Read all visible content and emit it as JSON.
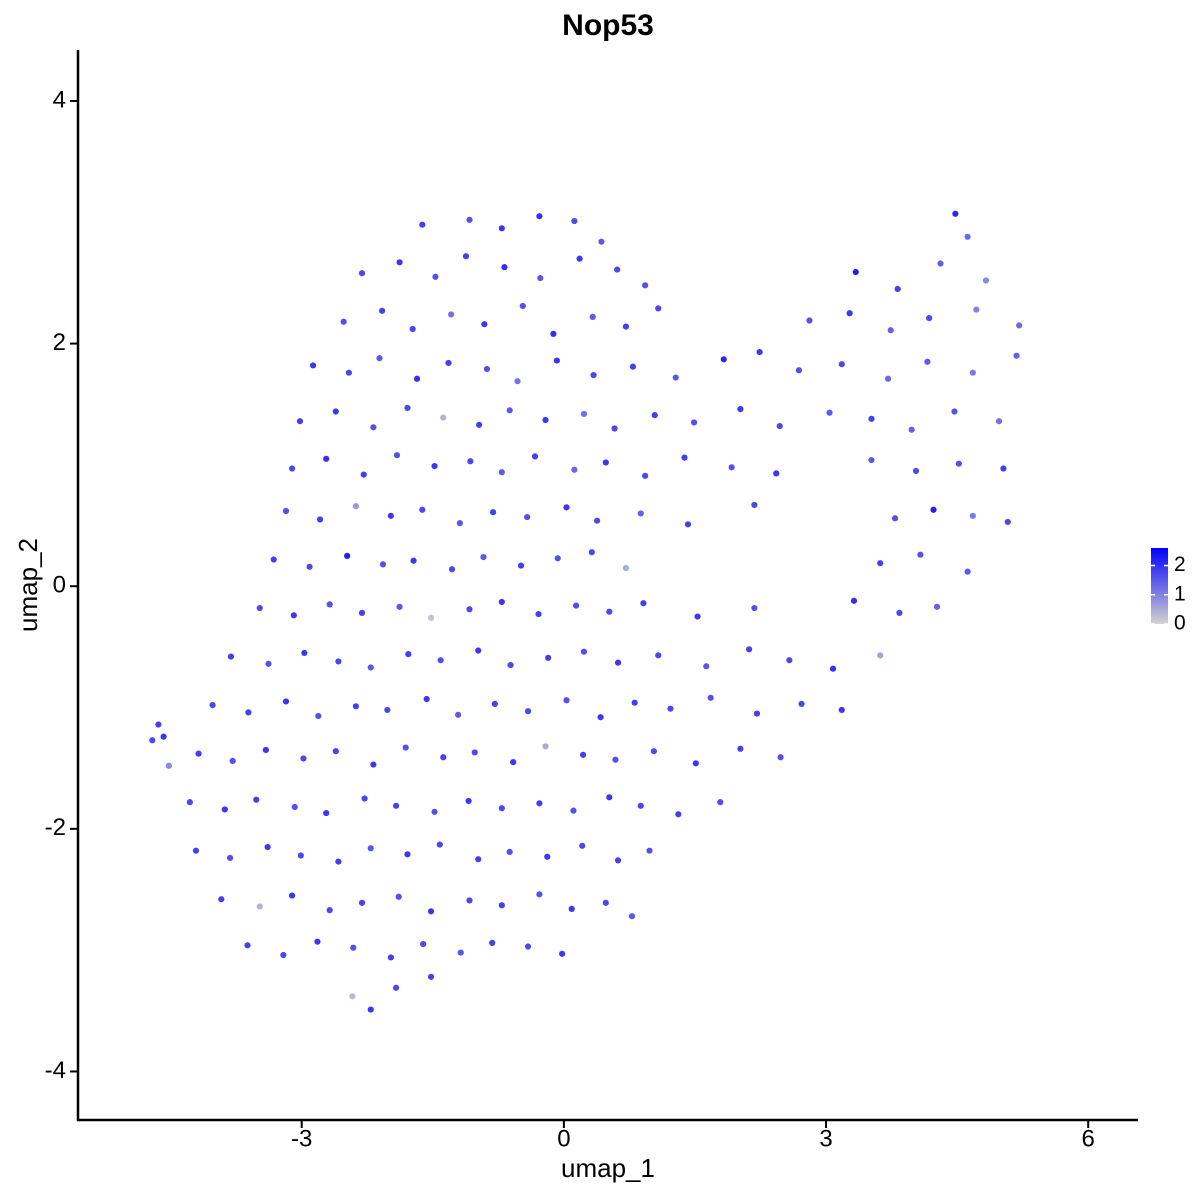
{
  "chart_data": {
    "type": "scatter",
    "title": "Nop53",
    "xlabel": "umap_1",
    "ylabel": "umap_2",
    "xlim": [
      -5.56,
      6.57
    ],
    "ylim": [
      -4.4,
      4.42
    ],
    "xticks": [
      -3,
      0,
      3,
      6
    ],
    "yticks": [
      -4,
      -2,
      0,
      2,
      4
    ],
    "grid": false,
    "color_scale": {
      "low": "#d3d3d3",
      "high": "#0000ff",
      "lim": [
        0,
        2.6
      ],
      "ticks": [
        0,
        1,
        2
      ],
      "position": "right"
    },
    "x": [
      -1.62,
      -1.08,
      -0.71,
      -0.28,
      0.12,
      0.43,
      4.48,
      4.62,
      -2.31,
      -1.88,
      -1.47,
      -1.12,
      -0.68,
      -0.27,
      0.18,
      0.61,
      0.93,
      3.34,
      3.82,
      4.31,
      4.83,
      -2.52,
      -2.08,
      -1.73,
      -1.29,
      -0.91,
      -0.47,
      -0.12,
      0.33,
      0.71,
      1.08,
      2.81,
      3.27,
      3.74,
      4.18,
      4.72,
      5.21,
      -2.87,
      -2.46,
      -2.11,
      -1.68,
      -1.32,
      -0.88,
      -0.53,
      -0.08,
      0.34,
      0.79,
      1.28,
      1.83,
      2.24,
      2.69,
      3.18,
      3.71,
      4.16,
      4.68,
      5.18,
      -3.02,
      -2.61,
      -2.18,
      -1.79,
      -1.38,
      -0.97,
      -0.62,
      -0.21,
      0.23,
      0.58,
      1.04,
      1.49,
      2.02,
      2.47,
      3.04,
      3.52,
      3.98,
      4.47,
      4.98,
      -3.11,
      -2.72,
      -2.29,
      -1.91,
      -1.48,
      -1.07,
      -0.71,
      -0.33,
      0.12,
      0.48,
      0.93,
      1.38,
      1.92,
      2.43,
      3.52,
      4.03,
      4.52,
      5.03,
      -3.18,
      -2.79,
      -2.38,
      -1.98,
      -1.62,
      -1.19,
      -0.81,
      -0.42,
      0.03,
      0.38,
      0.88,
      1.42,
      2.18,
      3.79,
      4.23,
      4.68,
      5.08,
      -3.32,
      -2.91,
      -2.48,
      -2.07,
      -1.72,
      -1.28,
      -0.92,
      -0.49,
      -0.07,
      0.32,
      0.71,
      3.62,
      4.08,
      4.62,
      -3.48,
      -3.09,
      -2.68,
      -2.31,
      -1.88,
      -1.52,
      -1.08,
      -0.71,
      -0.29,
      0.14,
      0.52,
      0.91,
      1.53,
      2.18,
      3.32,
      3.84,
      4.27,
      -3.81,
      -3.38,
      -2.97,
      -2.58,
      -2.21,
      -1.78,
      -1.41,
      -0.98,
      -0.61,
      -0.18,
      0.23,
      0.62,
      1.08,
      1.63,
      2.12,
      2.58,
      3.08,
      3.62,
      -4.02,
      -3.61,
      -3.18,
      -2.81,
      -2.38,
      -2.02,
      -1.57,
      -1.21,
      -0.79,
      -0.41,
      0.03,
      0.42,
      0.81,
      1.22,
      1.68,
      2.21,
      2.72,
      3.18,
      -4.18,
      -3.79,
      -3.41,
      -2.98,
      -2.61,
      -2.18,
      -1.81,
      -1.38,
      -1.02,
      -0.58,
      -0.21,
      0.22,
      0.59,
      1.03,
      1.51,
      2.02,
      2.48,
      -4.28,
      -3.88,
      -3.52,
      -3.08,
      -2.72,
      -2.28,
      -1.92,
      -1.48,
      -1.09,
      -0.71,
      -0.28,
      0.11,
      0.52,
      0.88,
      1.31,
      1.79,
      -4.21,
      -3.82,
      -3.39,
      -3.01,
      -2.58,
      -2.21,
      -1.79,
      -1.42,
      -0.98,
      -0.62,
      -0.19,
      0.21,
      0.62,
      0.98,
      -3.92,
      -3.48,
      -3.11,
      -2.68,
      -2.31,
      -1.89,
      -1.52,
      -1.08,
      -0.71,
      -0.28,
      0.09,
      0.48,
      0.78,
      -3.62,
      -3.21,
      -2.82,
      -2.41,
      -1.98,
      -1.61,
      -1.18,
      -0.82,
      -0.41,
      -0.02,
      -2.42,
      -2.21,
      -1.92,
      -1.52,
      -4.71,
      -4.64,
      -4.58,
      -4.52
    ],
    "values": [
      2.98,
      3.02,
      2.95,
      3.05,
      3.01,
      2.84,
      3.07,
      2.88,
      2.58,
      2.67,
      2.55,
      2.72,
      2.63,
      2.54,
      2.7,
      2.61,
      2.48,
      2.59,
      2.45,
      2.66,
      2.52,
      2.18,
      2.27,
      2.12,
      2.24,
      2.16,
      2.31,
      2.08,
      2.22,
      2.14,
      2.29,
      2.19,
      2.25,
      2.11,
      2.21,
      2.28,
      2.15,
      1.82,
      1.76,
      1.88,
      1.71,
      1.84,
      1.79,
      1.69,
      1.86,
      1.74,
      1.81,
      1.72,
      1.87,
      1.93,
      1.78,
      1.83,
      1.71,
      1.85,
      1.76,
      1.9,
      1.36,
      1.44,
      1.31,
      1.47,
      1.39,
      1.33,
      1.45,
      1.37,
      1.42,
      1.3,
      1.41,
      1.35,
      1.46,
      1.32,
      1.43,
      1.38,
      1.29,
      1.44,
      1.36,
      0.97,
      1.05,
      0.92,
      1.08,
      0.99,
      1.03,
      0.94,
      1.07,
      0.96,
      1.02,
      0.91,
      1.06,
      0.98,
      0.93,
      1.04,
      0.95,
      1.01,
      0.97,
      0.62,
      0.55,
      0.66,
      0.58,
      0.63,
      0.52,
      0.61,
      0.57,
      0.65,
      0.54,
      0.6,
      0.51,
      0.67,
      0.56,
      0.63,
      0.58,
      0.53,
      0.22,
      0.16,
      0.25,
      0.18,
      0.21,
      0.14,
      0.24,
      0.17,
      0.23,
      0.28,
      0.15,
      0.19,
      0.26,
      0.12,
      -0.18,
      -0.24,
      -0.15,
      -0.22,
      -0.17,
      -0.26,
      -0.19,
      -0.13,
      -0.23,
      -0.16,
      -0.21,
      -0.14,
      -0.25,
      -0.18,
      -0.12,
      -0.22,
      -0.17,
      -0.58,
      -0.64,
      -0.55,
      -0.62,
      -0.67,
      -0.56,
      -0.61,
      -0.53,
      -0.65,
      -0.59,
      -0.54,
      -0.63,
      -0.57,
      -0.66,
      -0.52,
      -0.61,
      -0.68,
      -0.57,
      -0.98,
      -1.04,
      -0.95,
      -1.07,
      -0.99,
      -1.02,
      -0.93,
      -1.06,
      -0.97,
      -1.03,
      -0.94,
      -1.08,
      -0.96,
      -1.01,
      -0.92,
      -1.05,
      -0.97,
      -1.02,
      -1.38,
      -1.44,
      -1.35,
      -1.42,
      -1.36,
      -1.47,
      -1.33,
      -1.41,
      -1.37,
      -1.45,
      -1.32,
      -1.39,
      -1.43,
      -1.36,
      -1.46,
      -1.34,
      -1.41,
      -1.78,
      -1.84,
      -1.76,
      -1.82,
      -1.87,
      -1.75,
      -1.81,
      -1.86,
      -1.77,
      -1.83,
      -1.79,
      -1.85,
      -1.74,
      -1.81,
      -1.88,
      -1.78,
      -2.18,
      -2.24,
      -2.15,
      -2.22,
      -2.27,
      -2.16,
      -2.21,
      -2.13,
      -2.25,
      -2.19,
      -2.23,
      -2.14,
      -2.26,
      -2.18,
      -2.58,
      -2.64,
      -2.55,
      -2.67,
      -2.61,
      -2.56,
      -2.68,
      -2.59,
      -2.63,
      -2.54,
      -2.66,
      -2.61,
      -2.72,
      -2.96,
      -3.04,
      -2.93,
      -2.98,
      -3.06,
      -2.95,
      -3.02,
      -2.94,
      -2.97,
      -3.03,
      -3.38,
      -3.49,
      -3.31,
      -3.22,
      -1.27,
      -1.14,
      -1.24,
      -1.48
    ],
    "expression": [
      1.8,
      1.6,
      1.9,
      2.0,
      1.7,
      1.5,
      2.1,
      1.3,
      1.7,
      1.9,
      1.6,
      1.8,
      2.0,
      1.5,
      1.9,
      1.7,
      1.6,
      2.2,
      1.8,
      1.4,
      0.9,
      1.6,
      1.8,
      1.7,
      1.2,
      1.9,
      1.6,
      2.0,
      1.5,
      1.8,
      1.7,
      1.6,
      1.9,
      1.4,
      1.7,
      1.0,
      1.3,
      1.9,
      1.7,
      1.5,
      2.0,
      1.8,
      1.6,
      1.2,
      1.9,
      1.7,
      1.8,
      1.5,
      2.1,
      1.9,
      1.6,
      1.7,
      1.3,
      1.5,
      1.1,
      1.4,
      1.8,
      1.9,
      1.6,
      1.7,
      0.4,
      1.8,
      1.5,
      1.9,
      1.2,
      1.7,
      1.8,
      1.6,
      1.9,
      1.7,
      1.5,
      1.8,
      1.4,
      1.6,
      1.2,
      1.7,
      2.0,
      1.8,
      1.6,
      1.9,
      1.7,
      1.5,
      1.8,
      1.3,
      1.9,
      1.7,
      1.8,
      1.6,
      1.9,
      1.5,
      1.7,
      1.6,
      1.8,
      1.6,
      1.8,
      0.7,
      1.9,
      1.7,
      1.5,
      1.8,
      1.6,
      1.9,
      1.7,
      1.4,
      1.8,
      1.7,
      1.6,
      2.2,
      1.1,
      1.7,
      1.8,
      1.7,
      2.2,
      1.6,
      1.9,
      1.7,
      1.5,
      1.8,
      1.6,
      1.7,
      0.5,
      1.8,
      1.6,
      1.5,
      1.7,
      1.9,
      1.6,
      1.8,
      1.5,
      0.2,
      1.7,
      1.9,
      1.8,
      1.6,
      1.7,
      1.8,
      1.9,
      1.6,
      2.0,
      1.7,
      1.4,
      1.8,
      1.6,
      1.9,
      1.7,
      1.5,
      1.8,
      1.6,
      1.9,
      1.7,
      1.8,
      1.6,
      1.9,
      1.7,
      1.5,
      1.8,
      1.7,
      2.0,
      0.6,
      1.7,
      1.8,
      1.9,
      1.6,
      1.8,
      1.7,
      1.9,
      1.5,
      1.8,
      1.7,
      1.6,
      1.9,
      1.8,
      1.7,
      1.6,
      1.8,
      1.7,
      1.9,
      1.8,
      1.6,
      1.9,
      1.7,
      1.8,
      1.9,
      1.6,
      1.8,
      1.7,
      1.9,
      0.5,
      1.8,
      1.6,
      1.7,
      1.9,
      1.8,
      1.6,
      1.7,
      1.9,
      1.8,
      1.6,
      1.9,
      1.7,
      1.8,
      1.6,
      1.9,
      1.7,
      1.8,
      1.6,
      1.9,
      1.7,
      1.8,
      1.6,
      1.8,
      1.6,
      1.9,
      1.7,
      1.8,
      1.5,
      1.9,
      1.7,
      1.8,
      1.6,
      1.9,
      1.7,
      1.8,
      1.6,
      1.8,
      0.4,
      1.9,
      1.7,
      1.8,
      1.6,
      1.9,
      1.7,
      1.8,
      1.6,
      1.9,
      1.7,
      1.5,
      1.8,
      1.7,
      1.9,
      1.6,
      1.8,
      1.7,
      1.5,
      1.8,
      1.7,
      1.9,
      0.3,
      1.9,
      1.7,
      1.8,
      1.7,
      1.8,
      1.9,
      0.9
    ]
  }
}
